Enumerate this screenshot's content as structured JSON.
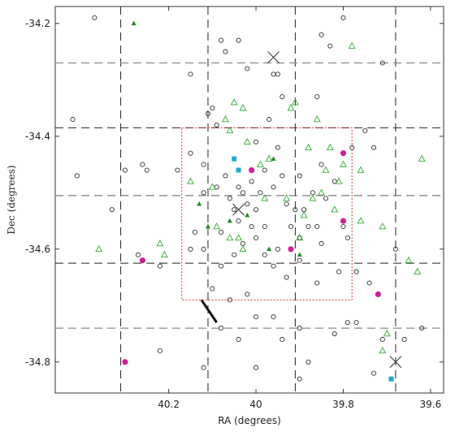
{
  "chart_data": {
    "type": "scatter",
    "xlabel": "RA (degrees)",
    "ylabel": "Dec (degrees)",
    "xlim": [
      40.46,
      39.57
    ],
    "ylim": [
      -34.855,
      -34.17
    ],
    "x_ticks": [
      40.2,
      40.0,
      39.8,
      39.6
    ],
    "x_tick_labels": [
      "40.2",
      "40",
      "39.8",
      "39.6"
    ],
    "y_ticks": [
      -34.2,
      -34.4,
      -34.6,
      -34.8
    ],
    "y_tick_labels": [
      "-34.2",
      "-34.4",
      "-34.6",
      "-34.8"
    ],
    "grid": {
      "vertical_x": [
        40.31,
        40.11,
        39.91,
        39.68
      ],
      "horizontal_y": [
        -34.27,
        -34.385,
        -34.505,
        -34.625,
        -34.74
      ],
      "vertical_dash": "long-dash",
      "horizontal_dash_pattern": "alternating-gray-black"
    },
    "dotted_box": {
      "x": [
        40.17,
        39.78
      ],
      "y": [
        -34.385,
        -34.69
      ],
      "color": "#dd3333"
    },
    "diagonal_line": {
      "x": [
        40.125,
        40.09
      ],
      "y": [
        -34.69,
        -34.73
      ]
    },
    "series": [
      {
        "marker": "open-circle",
        "color": "#333333",
        "points": [
          [
            40.37,
            -34.19
          ],
          [
            40.42,
            -34.37
          ],
          [
            40.41,
            -34.47
          ],
          [
            40.33,
            -34.53
          ],
          [
            40.3,
            -34.46
          ],
          [
            40.26,
            -34.45
          ],
          [
            40.25,
            -34.46
          ],
          [
            40.22,
            -34.63
          ],
          [
            40.27,
            -34.61
          ],
          [
            40.15,
            -34.29
          ],
          [
            40.1,
            -34.35
          ],
          [
            40.11,
            -34.36
          ],
          [
            40.09,
            -34.38
          ],
          [
            40.08,
            -34.23
          ],
          [
            40.07,
            -34.25
          ],
          [
            40.02,
            -34.28
          ],
          [
            40.04,
            -34.23
          ],
          [
            39.96,
            -34.29
          ],
          [
            39.95,
            -34.29
          ],
          [
            39.94,
            -34.33
          ],
          [
            39.97,
            -34.37
          ],
          [
            40.0,
            -34.41
          ],
          [
            39.85,
            -34.22
          ],
          [
            39.8,
            -34.19
          ],
          [
            39.83,
            -34.24
          ],
          [
            39.86,
            -34.33
          ],
          [
            39.71,
            -34.27
          ],
          [
            39.75,
            -34.39
          ],
          [
            39.73,
            -34.42
          ],
          [
            40.18,
            -34.46
          ],
          [
            40.15,
            -34.43
          ],
          [
            40.12,
            -34.45
          ],
          [
            40.12,
            -34.5
          ],
          [
            40.09,
            -34.49
          ],
          [
            40.07,
            -34.47
          ],
          [
            40.06,
            -34.51
          ],
          [
            40.05,
            -34.53
          ],
          [
            40.04,
            -34.49
          ],
          [
            40.04,
            -34.55
          ],
          [
            40.03,
            -34.5
          ],
          [
            40.01,
            -34.48
          ],
          [
            40.02,
            -34.52
          ],
          [
            40.0,
            -34.53
          ],
          [
            39.99,
            -34.5
          ],
          [
            39.98,
            -34.56
          ],
          [
            39.96,
            -34.49
          ],
          [
            39.95,
            -34.42
          ],
          [
            39.94,
            -34.47
          ],
          [
            39.93,
            -34.52
          ],
          [
            39.92,
            -34.56
          ],
          [
            39.91,
            -34.53
          ],
          [
            39.9,
            -34.47
          ],
          [
            39.89,
            -34.53
          ],
          [
            39.88,
            -34.56
          ],
          [
            39.87,
            -34.5
          ],
          [
            39.85,
            -34.45
          ],
          [
            39.84,
            -34.51
          ],
          [
            39.86,
            -34.56
          ],
          [
            39.82,
            -34.48
          ],
          [
            39.8,
            -34.56
          ],
          [
            39.79,
            -34.58
          ],
          [
            39.85,
            -34.59
          ],
          [
            39.9,
            -34.58
          ],
          [
            39.9,
            -34.62
          ],
          [
            39.95,
            -34.6
          ],
          [
            39.96,
            -34.63
          ],
          [
            39.98,
            -34.61
          ],
          [
            40.0,
            -34.58
          ],
          [
            40.03,
            -34.59
          ],
          [
            40.05,
            -34.61
          ],
          [
            40.08,
            -34.57
          ],
          [
            40.08,
            -34.63
          ],
          [
            40.12,
            -34.6
          ],
          [
            40.14,
            -34.57
          ],
          [
            40.15,
            -34.6
          ],
          [
            40.1,
            -34.67
          ],
          [
            40.06,
            -34.69
          ],
          [
            39.93,
            -34.65
          ],
          [
            39.86,
            -34.66
          ],
          [
            39.81,
            -34.64
          ],
          [
            39.77,
            -34.64
          ],
          [
            39.74,
            -34.66
          ],
          [
            39.68,
            -34.6
          ],
          [
            39.62,
            -34.74
          ],
          [
            39.66,
            -34.76
          ],
          [
            39.71,
            -34.76
          ],
          [
            39.77,
            -34.73
          ],
          [
            39.79,
            -34.73
          ],
          [
            39.82,
            -34.75
          ],
          [
            39.88,
            -34.8
          ],
          [
            39.9,
            -34.74
          ],
          [
            39.94,
            -34.76
          ],
          [
            39.96,
            -34.72
          ],
          [
            40.0,
            -34.72
          ],
          [
            40.02,
            -34.68
          ],
          [
            40.04,
            -34.76
          ],
          [
            40.08,
            -34.74
          ],
          [
            40.0,
            -34.81
          ],
          [
            40.12,
            -34.81
          ],
          [
            40.22,
            -34.78
          ],
          [
            39.73,
            -34.82
          ],
          [
            39.9,
            -34.83
          ],
          [
            39.78,
            -34.42
          ],
          [
            40.01,
            -34.56
          ],
          [
            39.98,
            -34.46
          ]
        ]
      },
      {
        "marker": "open-triangle",
        "color": "#33aa33",
        "points": [
          [
            40.07,
            -34.37
          ],
          [
            40.06,
            -34.39
          ],
          [
            40.05,
            -34.34
          ],
          [
            40.03,
            -34.35
          ],
          [
            40.02,
            -34.41
          ],
          [
            39.99,
            -34.45
          ],
          [
            39.97,
            -34.44
          ],
          [
            39.92,
            -34.35
          ],
          [
            39.91,
            -34.34
          ],
          [
            39.88,
            -34.42
          ],
          [
            39.86,
            -34.37
          ],
          [
            39.84,
            -34.46
          ],
          [
            39.83,
            -34.42
          ],
          [
            39.81,
            -34.48
          ],
          [
            39.8,
            -34.45
          ],
          [
            39.78,
            -34.24
          ],
          [
            39.76,
            -34.46
          ],
          [
            39.71,
            -34.56
          ],
          [
            39.62,
            -34.44
          ],
          [
            40.36,
            -34.6
          ],
          [
            40.22,
            -34.59
          ],
          [
            40.15,
            -34.48
          ],
          [
            40.1,
            -34.49
          ],
          [
            40.09,
            -34.56
          ],
          [
            40.06,
            -34.58
          ],
          [
            40.04,
            -34.58
          ],
          [
            40.03,
            -34.6
          ],
          [
            39.98,
            -34.51
          ],
          [
            39.93,
            -34.51
          ],
          [
            39.9,
            -34.58
          ],
          [
            39.89,
            -34.54
          ],
          [
            39.87,
            -34.51
          ],
          [
            39.85,
            -34.5
          ],
          [
            39.82,
            -34.53
          ],
          [
            39.76,
            -34.55
          ],
          [
            39.63,
            -34.64
          ],
          [
            40.21,
            -34.61
          ],
          [
            39.65,
            -34.62
          ],
          [
            39.7,
            -34.75
          ],
          [
            39.71,
            -34.78
          ]
        ]
      },
      {
        "marker": "filled-triangle",
        "color": "#228822",
        "points": [
          [
            40.28,
            -34.2
          ],
          [
            40.13,
            -34.52
          ],
          [
            40.11,
            -34.56
          ],
          [
            40.06,
            -34.55
          ],
          [
            40.02,
            -34.54
          ],
          [
            39.97,
            -34.6
          ],
          [
            39.9,
            -34.61
          ],
          [
            39.96,
            -34.44
          ]
        ]
      },
      {
        "marker": "filled-circle",
        "color": "#cc2299",
        "points": [
          [
            40.01,
            -34.46
          ],
          [
            39.8,
            -34.43
          ],
          [
            39.8,
            -34.55
          ],
          [
            39.92,
            -34.6
          ],
          [
            40.26,
            -34.62
          ],
          [
            39.72,
            -34.68
          ],
          [
            40.3,
            -34.8
          ]
        ]
      },
      {
        "marker": "filled-square",
        "color": "#22aacc",
        "points": [
          [
            40.04,
            -34.46
          ],
          [
            40.05,
            -34.44
          ],
          [
            39.69,
            -34.83
          ]
        ]
      },
      {
        "marker": "large-x",
        "color": "#333333",
        "points": [
          [
            39.96,
            -34.26
          ],
          [
            40.04,
            -34.53
          ],
          [
            39.68,
            -34.8
          ]
        ]
      }
    ]
  }
}
